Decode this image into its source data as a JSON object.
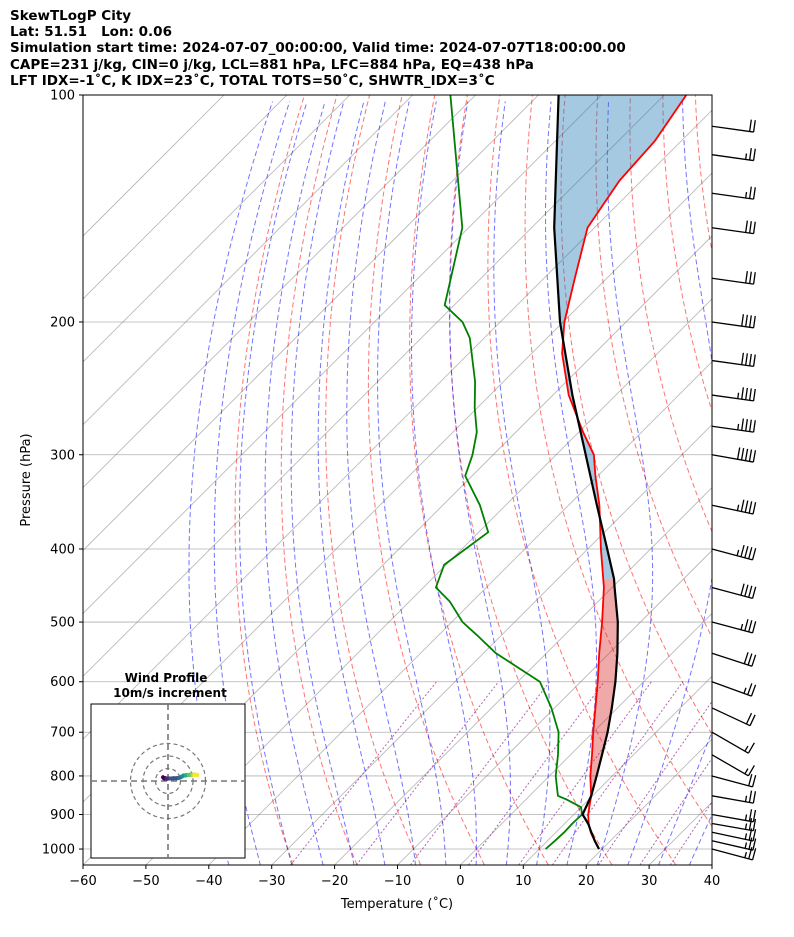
{
  "header": {
    "lines": [
      "SkewTLogP City",
      "Lat: 51.51   Lon: 0.06",
      "Simulation start time: 2024-07-07_00:00:00, Valid time: 2024-07-07T18:00:00.00",
      "CAPE=231 j/kg, CIN=0 j/kg, LCL=881 hPa, LFC=884 hPa, EQ=438 hPa",
      "LFT IDX=-1˚C, K IDX=23˚C, TOTAL TOTS=50˚C, SHWTR_IDX=3˚C"
    ]
  },
  "chart_data": {
    "type": "line",
    "subtype": "skewt-logp",
    "xlabel": "Temperature ($^\\circ$C)",
    "xlabel_display": "Temperature (˚C)",
    "ylabel": "Pressure (hPa)",
    "xlim": [
      -60,
      40
    ],
    "ylim": [
      1050,
      100
    ],
    "x_ticks": [
      -60,
      -50,
      -40,
      -30,
      -20,
      -10,
      0,
      10,
      20,
      30,
      40
    ],
    "y_ticks": [
      100,
      200,
      300,
      400,
      500,
      600,
      700,
      800,
      900,
      1000
    ],
    "grid": true,
    "y_scale": "log",
    "colors": {
      "temperature": "#ff0000",
      "dewpoint": "#008000",
      "parcel": "#000000",
      "cape_fill": "#1f77b4",
      "cin_fill": "#d62728",
      "dry_adiabats": "#ff0000",
      "moist_adiabats": "#0000ff",
      "mixing_ratio": "#800080",
      "isotherms": "#808080"
    },
    "series": [
      {
        "name": "temperature",
        "p": [
          1000,
          975,
          950,
          925,
          900,
          880,
          850,
          800,
          750,
          700,
          650,
          600,
          550,
          500,
          450,
          400,
          350,
          320,
          300,
          280,
          250,
          220,
          200,
          175,
          150,
          130,
          115,
          100
        ],
        "t": [
          19.5,
          17.5,
          15.5,
          13.8,
          12.3,
          11.3,
          9.8,
          6.5,
          3.4,
          0.0,
          -3.5,
          -7.3,
          -11.6,
          -16.1,
          -21.3,
          -27.9,
          -35.1,
          -40.4,
          -44.0,
          -49.3,
          -57.5,
          -65.2,
          -69.8,
          -75.1,
          -81.1,
          -83.5,
          -84.2,
          -86.5
        ]
      },
      {
        "name": "dewpoint",
        "p": [
          1000,
          975,
          950,
          925,
          900,
          880,
          860,
          850,
          800,
          750,
          700,
          650,
          600,
          550,
          520,
          500,
          470,
          450,
          420,
          380,
          350,
          320,
          300,
          280,
          260,
          240,
          210,
          200,
          190,
          150,
          100
        ],
        "t": [
          11.0,
          11.2,
          11.3,
          11.2,
          11.3,
          10.0,
          6.5,
          4.5,
          1.0,
          -2.0,
          -5.5,
          -10.5,
          -16.5,
          -28.0,
          -34.0,
          -38.3,
          -43.5,
          -48.0,
          -50.3,
          -48.5,
          -54.1,
          -61.1,
          -63.3,
          -66.2,
          -70.4,
          -74.5,
          -82.3,
          -86.0,
          -91.5,
          -101.0,
          -124.0
        ]
      },
      {
        "name": "parcel",
        "p": [
          1000,
          975,
          950,
          925,
          900,
          881,
          850,
          800,
          750,
          700,
          650,
          600,
          550,
          500,
          450,
          438,
          400,
          350,
          300,
          250,
          200,
          150,
          100
        ],
        "t": [
          19.5,
          17.5,
          15.6,
          13.7,
          11.4,
          10.8,
          9.8,
          7.5,
          5.0,
          2.3,
          -0.9,
          -4.5,
          -8.7,
          -13.6,
          -19.6,
          -21.1,
          -26.9,
          -35.5,
          -45.3,
          -56.9,
          -70.5,
          -86.4,
          -106.8
        ]
      }
    ],
    "barbs": {
      "units": "kt",
      "p": [
        1000,
        975,
        950,
        925,
        900,
        850,
        800,
        750,
        700,
        650,
        600,
        550,
        500,
        450,
        400,
        350,
        300,
        275,
        250,
        225,
        200,
        175,
        150,
        135,
        120,
        110
      ],
      "speed": [
        25,
        25,
        25,
        25,
        25,
        25,
        20,
        15,
        15,
        20,
        25,
        30,
        35,
        40,
        45,
        45,
        50,
        45,
        45,
        40,
        40,
        30,
        30,
        25,
        25,
        20
      ],
      "direction": [
        255,
        257,
        258,
        260,
        260,
        260,
        255,
        240,
        240,
        245,
        250,
        252,
        255,
        255,
        255,
        258,
        260,
        262,
        262,
        262,
        262,
        262,
        262,
        262,
        262,
        262
      ]
    },
    "hodograph": {
      "title": "Wind Profile",
      "subtitle": "10m/s increment",
      "u": [
        -4.0,
        -3.0,
        -2.0,
        -1.0,
        0.0,
        2.0,
        4.5,
        7.0,
        9.0,
        10.5,
        11.5,
        12.5,
        13.5,
        14.5,
        15.5,
        16.5,
        17.5,
        18.5,
        19.5,
        20.0,
        21.0,
        22.5,
        23.5
      ],
      "v": [
        3.0,
        2.0,
        2.2,
        1.8,
        2.0,
        2.0,
        2.2,
        2.2,
        2.6,
        3.2,
        3.8,
        4.4,
        4.4,
        4.6,
        4.8,
        4.8,
        5.0,
        5.0,
        5.0,
        5.2,
        5.0,
        5.0,
        4.8
      ],
      "rings": [
        10,
        20,
        30
      ],
      "colormap": "viridis"
    }
  }
}
